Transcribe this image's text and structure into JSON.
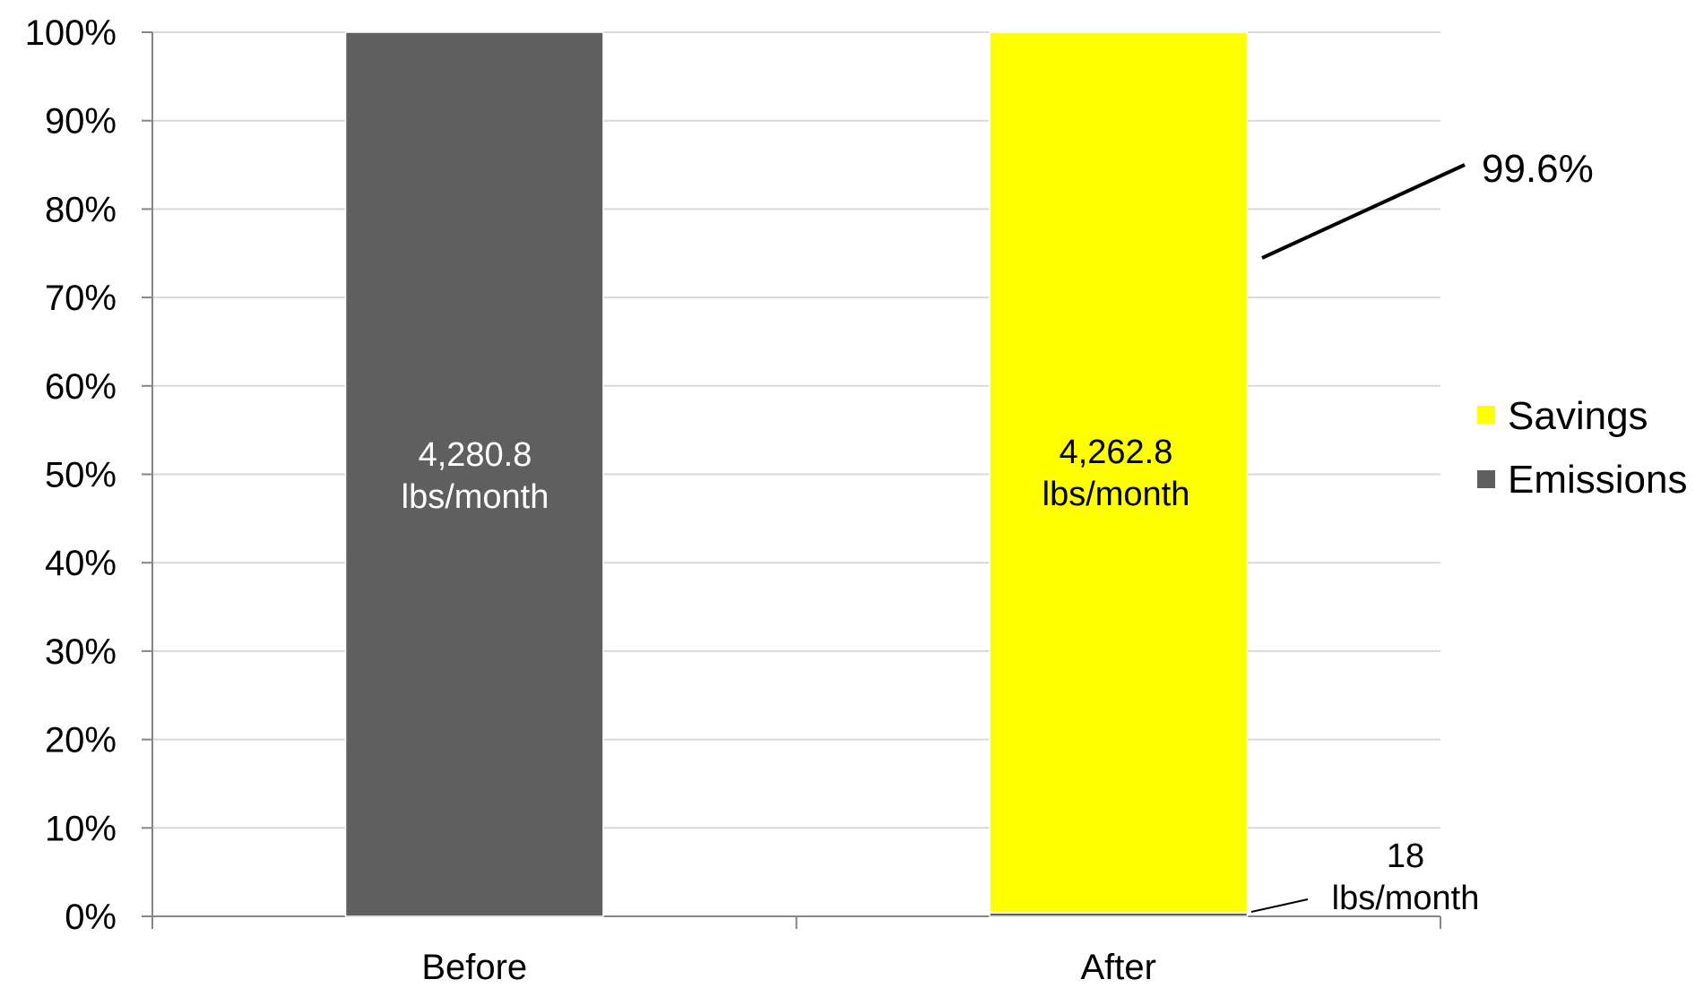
{
  "chart_data": {
    "type": "bar",
    "stacked": true,
    "categories": [
      "Before",
      "After"
    ],
    "series": [
      {
        "name": "Emissions",
        "values": [
          100,
          0.4
        ],
        "color": "#5f5f5f"
      },
      {
        "name": "Savings",
        "values": [
          0,
          99.6
        ],
        "color": "#ffff00"
      }
    ],
    "ylim": [
      0,
      100
    ],
    "y_ticks": [
      "0%",
      "10%",
      "20%",
      "30%",
      "40%",
      "50%",
      "60%",
      "70%",
      "80%",
      "90%",
      "100%"
    ],
    "y_tick_values": [
      0,
      10,
      20,
      30,
      40,
      50,
      60,
      70,
      80,
      90,
      100
    ],
    "grid": true,
    "legend_position": "right",
    "legend": [
      "Savings",
      "Emissions"
    ],
    "data_labels": {
      "before_emissions": {
        "line1": "4,280.8",
        "line2": "lbs/month"
      },
      "after_savings": {
        "line1": "4,262.8",
        "line2": "lbs/month"
      },
      "after_emissions": {
        "line1": "18",
        "line2": "lbs/month"
      }
    },
    "annotation": "99.6%",
    "title": "",
    "xlabel": "",
    "ylabel": ""
  }
}
